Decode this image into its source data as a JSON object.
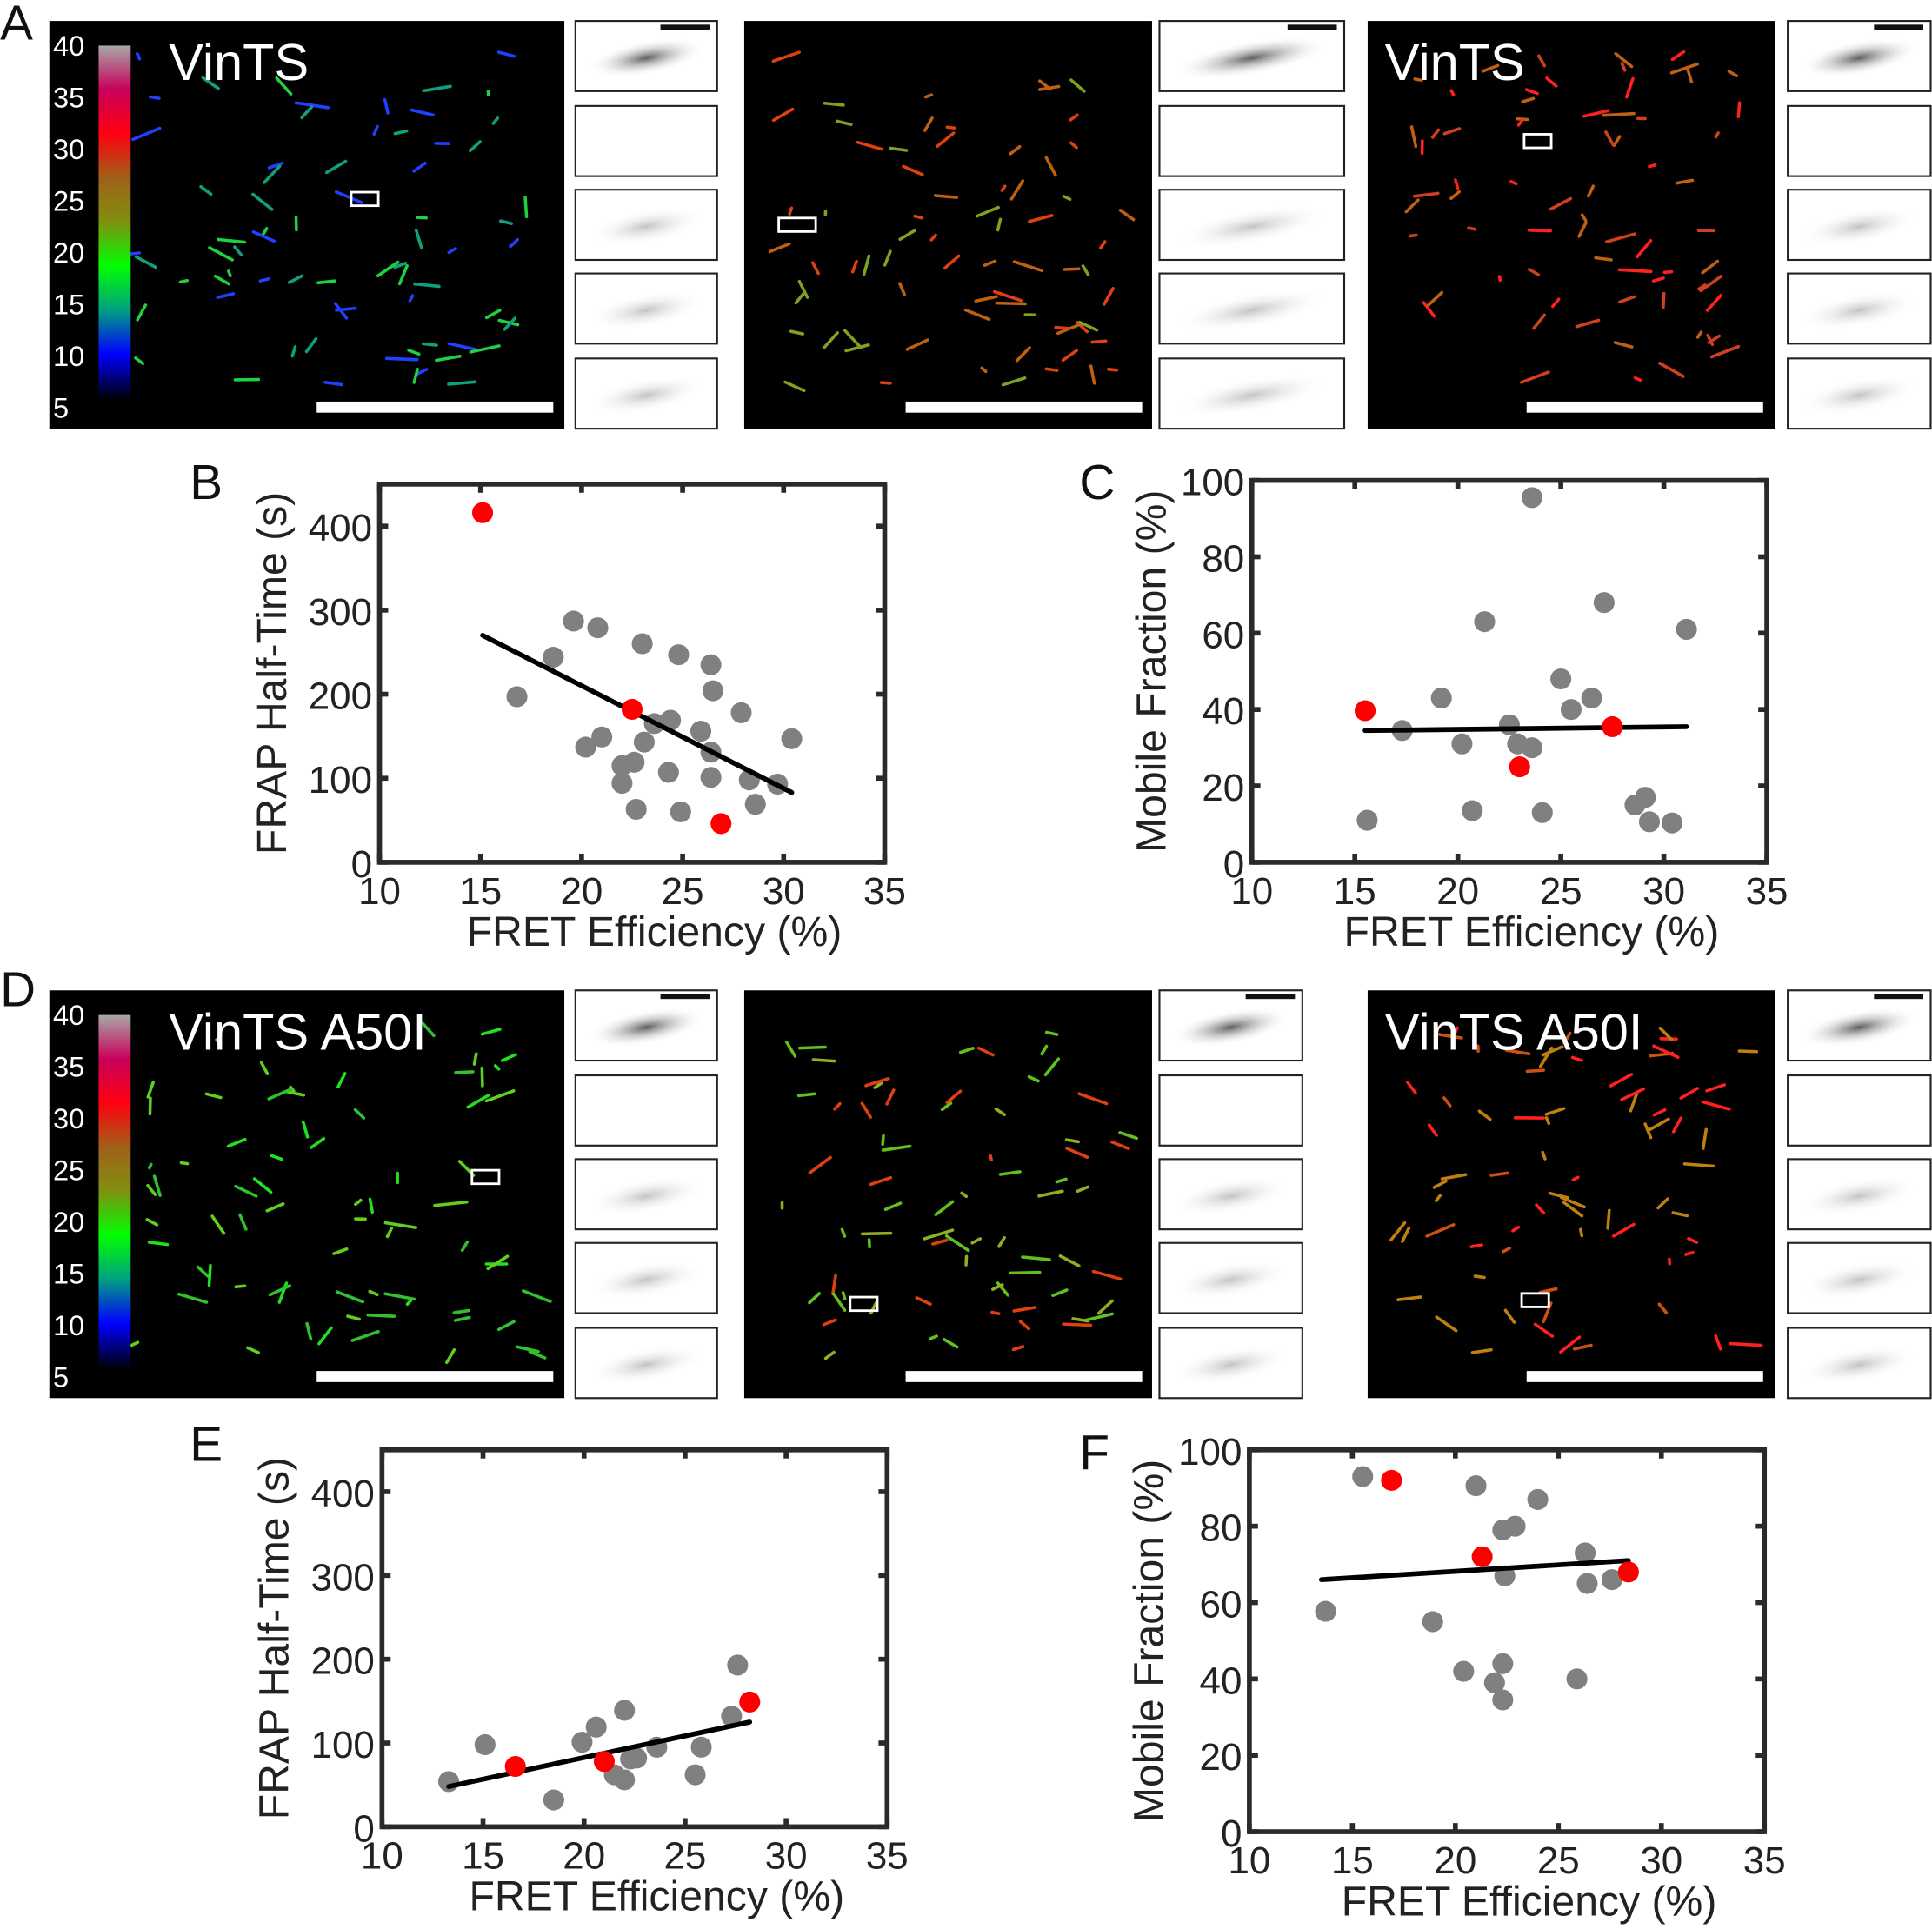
{
  "panel_letters": [
    "A",
    "B",
    "C",
    "D",
    "E",
    "F"
  ],
  "images": {
    "row_A": {
      "title_left": "VinTS",
      "title_right": "VinTS"
    },
    "row_D": {
      "title_left": "VinTS A50I",
      "title_right": "VinTS A50I"
    },
    "colorbar_ticks": [
      "40",
      "35",
      "30",
      "25",
      "20",
      "15",
      "10",
      "5"
    ],
    "colorbar_colors": [
      "#a8a8a8",
      "#c8005a",
      "#ff0010",
      "#a06018",
      "#809010",
      "#00ff00",
      "#00a080",
      "#0000ff",
      "#000010"
    ]
  },
  "colors": {
    "gray_point": "#808080",
    "red_point": "#ff0000",
    "fit_line": "#000000"
  },
  "chart_data": [
    {
      "panel": "B",
      "type": "scatter",
      "xlabel": "FRET Efficiency (%)",
      "ylabel": "FRAP Half-Time (s)",
      "xlim": [
        10,
        35
      ],
      "ylim": [
        0,
        450
      ],
      "xticks": [
        "10",
        "15",
        "20",
        "25",
        "30",
        "35"
      ],
      "yticks": [
        "0",
        "100",
        "200",
        "300",
        "400"
      ],
      "gray_points": [
        [
          16.8,
          197
        ],
        [
          18.6,
          244
        ],
        [
          19.6,
          287
        ],
        [
          20.8,
          279
        ],
        [
          23.0,
          260
        ],
        [
          24.8,
          247
        ],
        [
          26.4,
          235
        ],
        [
          26.5,
          204
        ],
        [
          27.9,
          178
        ],
        [
          30.4,
          147
        ],
        [
          29.7,
          93
        ],
        [
          28.6,
          69
        ],
        [
          28.3,
          98
        ],
        [
          26.4,
          101
        ],
        [
          26.4,
          131
        ],
        [
          25.9,
          156
        ],
        [
          24.4,
          169
        ],
        [
          23.6,
          165
        ],
        [
          23.1,
          143
        ],
        [
          24.3,
          107
        ],
        [
          21.0,
          149
        ],
        [
          20.2,
          137
        ],
        [
          22.0,
          115
        ],
        [
          22.6,
          119
        ],
        [
          22.0,
          94
        ],
        [
          22.7,
          63
        ],
        [
          24.9,
          60
        ]
      ],
      "red_points": [
        [
          15.1,
          416
        ],
        [
          22.5,
          182
        ],
        [
          26.9,
          46
        ]
      ],
      "fit_line": [
        [
          15.1,
          270
        ],
        [
          30.4,
          83
        ]
      ]
    },
    {
      "panel": "C",
      "type": "scatter",
      "xlabel": "FRET Efficiency (%)",
      "ylabel": "Mobile Fraction (%)",
      "xlim": [
        10,
        35
      ],
      "ylim": [
        0,
        100
      ],
      "xticks": [
        "10",
        "15",
        "20",
        "25",
        "30",
        "35"
      ],
      "yticks": [
        "0",
        "20",
        "40",
        "60",
        "80",
        "100"
      ],
      "gray_points": [
        [
          15.6,
          11
        ],
        [
          17.3,
          34.5
        ],
        [
          19.2,
          43
        ],
        [
          20.2,
          31
        ],
        [
          20.7,
          13.5
        ],
        [
          21.3,
          63
        ],
        [
          22.5,
          36
        ],
        [
          22.9,
          31
        ],
        [
          23.6,
          30
        ],
        [
          23.6,
          95.5
        ],
        [
          24.1,
          13
        ],
        [
          25.0,
          48
        ],
        [
          25.5,
          40
        ],
        [
          26.5,
          43
        ],
        [
          27.1,
          68
        ],
        [
          28.6,
          15
        ],
        [
          29.1,
          17
        ],
        [
          29.3,
          10.6
        ],
        [
          30.4,
          10.3
        ],
        [
          31.1,
          61
        ]
      ],
      "red_points": [
        [
          15.5,
          39.7
        ],
        [
          23.0,
          25
        ],
        [
          27.5,
          35.5
        ]
      ],
      "fit_line": [
        [
          15.5,
          34.5
        ],
        [
          31.1,
          35.5
        ]
      ]
    },
    {
      "panel": "E",
      "type": "scatter",
      "xlabel": "FRET Efficiency (%)",
      "ylabel": "FRAP Half-Time (s)",
      "xlim": [
        10,
        35
      ],
      "ylim": [
        0,
        450
      ],
      "xticks": [
        "10",
        "15",
        "20",
        "25",
        "30",
        "35"
      ],
      "yticks": [
        "0",
        "100",
        "200",
        "300",
        "400"
      ],
      "gray_points": [
        [
          13.3,
          54
        ],
        [
          15.1,
          98
        ],
        [
          18.5,
          32
        ],
        [
          19.9,
          101
        ],
        [
          20.6,
          119
        ],
        [
          21.5,
          62
        ],
        [
          22.0,
          139
        ],
        [
          22.0,
          56
        ],
        [
          22.3,
          81
        ],
        [
          22.6,
          82
        ],
        [
          23.6,
          95
        ],
        [
          25.5,
          62
        ],
        [
          25.8,
          95
        ],
        [
          27.3,
          132
        ],
        [
          27.6,
          193
        ]
      ],
      "red_points": [
        [
          16.6,
          72
        ],
        [
          21.0,
          78
        ],
        [
          28.2,
          149
        ]
      ],
      "fit_line": [
        [
          13.3,
          48
        ],
        [
          28.2,
          125
        ]
      ]
    },
    {
      "panel": "F",
      "type": "scatter",
      "xlabel": "FRET Efficiency (%)",
      "ylabel": "Mobile Fraction (%)",
      "xlim": [
        10,
        35
      ],
      "ylim": [
        0,
        100
      ],
      "xticks": [
        "10",
        "15",
        "20",
        "25",
        "30",
        "35"
      ],
      "yticks": [
        "0",
        "20",
        "40",
        "60",
        "80",
        "100"
      ],
      "gray_points": [
        [
          13.7,
          57.7
        ],
        [
          15.5,
          93
        ],
        [
          18.9,
          55
        ],
        [
          20.4,
          42
        ],
        [
          21.0,
          90.6
        ],
        [
          21.9,
          39
        ],
        [
          22.3,
          34.5
        ],
        [
          22.3,
          44
        ],
        [
          22.3,
          79
        ],
        [
          22.9,
          80
        ],
        [
          22.4,
          67
        ],
        [
          24.0,
          87
        ],
        [
          25.9,
          40
        ],
        [
          26.3,
          73
        ],
        [
          26.4,
          65
        ],
        [
          27.6,
          66
        ]
      ],
      "red_points": [
        [
          16.9,
          92
        ],
        [
          21.3,
          72
        ],
        [
          28.4,
          68
        ]
      ],
      "fit_line": [
        [
          13.5,
          66
        ],
        [
          28.4,
          71
        ]
      ]
    }
  ]
}
